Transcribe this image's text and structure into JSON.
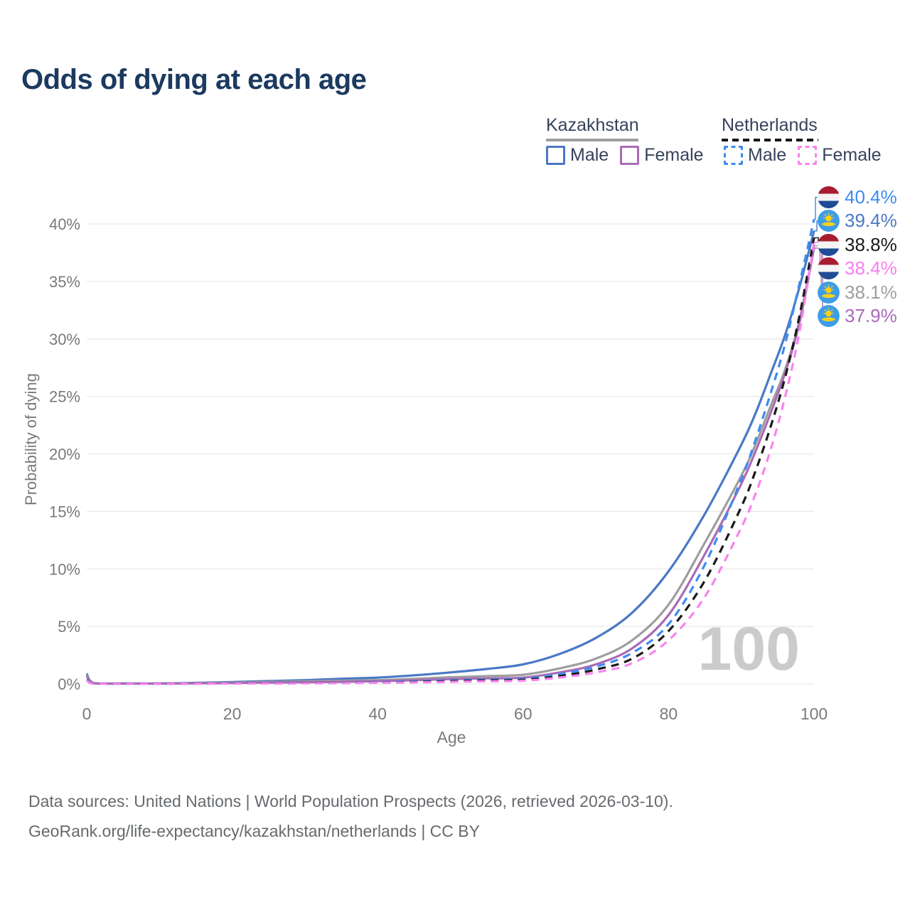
{
  "title": "Odds of dying at each age",
  "legend": {
    "groups": [
      {
        "id": "kazakhstan",
        "label": "Kazakhstan",
        "line_style": "solid",
        "line_color": "#9e9e9e",
        "items": [
          {
            "id": "kz-male",
            "label": "Male",
            "color": "#4a79c5",
            "style": "solid"
          },
          {
            "id": "kz-female",
            "label": "Female",
            "color": "#a96bb5",
            "style": "solid"
          }
        ]
      },
      {
        "id": "netherlands",
        "label": "Netherlands",
        "line_style": "dashed",
        "line_color": "#161616",
        "items": [
          {
            "id": "nl-male",
            "label": "Male",
            "color": "#3d8bf2",
            "style": "dashed"
          },
          {
            "id": "nl-female",
            "label": "Female",
            "color": "#f883f0",
            "style": "dashed"
          }
        ]
      }
    ]
  },
  "axes": {
    "y_label": "Probability of dying",
    "x_label": "Age",
    "y_ticks": [
      {
        "value": 0,
        "label": "0%"
      },
      {
        "value": 5,
        "label": "5%"
      },
      {
        "value": 10,
        "label": "10%"
      },
      {
        "value": 15,
        "label": "15%"
      },
      {
        "value": 20,
        "label": "20%"
      },
      {
        "value": 25,
        "label": "25%"
      },
      {
        "value": 30,
        "label": "30%"
      },
      {
        "value": 35,
        "label": "35%"
      },
      {
        "value": 40,
        "label": "40%"
      }
    ],
    "x_ticks": [
      {
        "value": 0,
        "label": "0"
      },
      {
        "value": 20,
        "label": "20"
      },
      {
        "value": 40,
        "label": "40"
      },
      {
        "value": 60,
        "label": "60"
      },
      {
        "value": 80,
        "label": "80"
      },
      {
        "value": 100,
        "label": "100"
      }
    ]
  },
  "age_marker": "100",
  "end_labels": [
    {
      "series": "nl-male",
      "flag": "netherlands",
      "text": "40.4%",
      "color": "#3d8bf2"
    },
    {
      "series": "kz-male",
      "flag": "kazakhstan",
      "text": "39.4%",
      "color": "#4a79c5"
    },
    {
      "series": "nl-both",
      "flag": "netherlands",
      "text": "38.8%",
      "color": "#1a1a1a"
    },
    {
      "series": "nl-female",
      "flag": "netherlands",
      "text": "38.4%",
      "color": "#f87ef0"
    },
    {
      "series": "kz-both",
      "flag": "kazakhstan",
      "text": "38.1%",
      "color": "#9e9e9e"
    },
    {
      "series": "kz-female",
      "flag": "kazakhstan",
      "text": "37.9%",
      "color": "#a96bb5"
    }
  ],
  "footer": {
    "line1": "Data sources: United Nations | World Population Prospects (2026, retrieved 2026-03-10).",
    "line2": "GeoRank.org/life-expectancy/kazakhstan/netherlands | CC BY"
  },
  "chart_data": {
    "type": "line",
    "title": "Odds of dying at each age",
    "xlabel": "Age",
    "ylabel": "Probability of dying",
    "xlim": [
      0,
      100
    ],
    "ylim_percent": [
      0,
      42
    ],
    "grid": true,
    "legend_position": "top-right",
    "x_ages": [
      0,
      1,
      5,
      10,
      15,
      20,
      25,
      30,
      35,
      40,
      45,
      50,
      55,
      60,
      65,
      70,
      75,
      80,
      85,
      90,
      92,
      94,
      96,
      98,
      100
    ],
    "series": [
      {
        "id": "kz-male",
        "name": "Kazakhstan Male",
        "country": "Kazakhstan",
        "sex": "male",
        "style": "solid",
        "color": "#4a79c5",
        "end_value_percent": 39.4,
        "values_percent": [
          0.9,
          0.07,
          0.04,
          0.04,
          0.09,
          0.17,
          0.25,
          0.33,
          0.45,
          0.55,
          0.75,
          1.0,
          1.3,
          1.7,
          2.6,
          4.0,
          6.2,
          9.8,
          14.8,
          20.8,
          23.6,
          26.9,
          30.3,
          34.5,
          39.4
        ]
      },
      {
        "id": "kz-both",
        "name": "Kazakhstan (both sexes)",
        "country": "Kazakhstan",
        "sex": "both",
        "style": "solid",
        "color": "#9e9e9e",
        "end_value_percent": 38.1,
        "values_percent": [
          0.8,
          0.06,
          0.03,
          0.03,
          0.07,
          0.12,
          0.17,
          0.23,
          0.28,
          0.33,
          0.44,
          0.58,
          0.68,
          0.8,
          1.35,
          2.2,
          3.8,
          6.9,
          12.3,
          18.1,
          20.9,
          24.1,
          27.3,
          31.6,
          38.1
        ]
      },
      {
        "id": "kz-female",
        "name": "Kazakhstan Female",
        "country": "Kazakhstan",
        "sex": "female",
        "style": "solid",
        "color": "#a96bb5",
        "end_value_percent": 37.9,
        "values_percent": [
          0.72,
          0.05,
          0.03,
          0.03,
          0.05,
          0.08,
          0.11,
          0.15,
          0.18,
          0.24,
          0.32,
          0.42,
          0.48,
          0.55,
          1.0,
          1.7,
          3.1,
          6.0,
          11.3,
          17.4,
          20.3,
          23.5,
          27.0,
          31.4,
          37.9
        ]
      },
      {
        "id": "nl-male",
        "name": "Netherlands Male",
        "country": "Netherlands",
        "sex": "male",
        "style": "dashed",
        "color": "#3d8bf2",
        "end_value_percent": 40.4,
        "values_percent": [
          0.38,
          0.03,
          0.02,
          0.02,
          0.03,
          0.05,
          0.06,
          0.08,
          0.11,
          0.15,
          0.22,
          0.3,
          0.37,
          0.45,
          0.85,
          1.5,
          2.7,
          5.2,
          10.4,
          17.8,
          21.3,
          25.2,
          29.5,
          34.8,
          40.4
        ]
      },
      {
        "id": "nl-both",
        "name": "Netherlands (both sexes)",
        "country": "Netherlands",
        "sex": "both",
        "style": "dashed",
        "color": "#1a1a1a",
        "end_value_percent": 38.8,
        "values_percent": [
          0.34,
          0.03,
          0.02,
          0.02,
          0.03,
          0.04,
          0.05,
          0.07,
          0.09,
          0.12,
          0.17,
          0.24,
          0.3,
          0.36,
          0.68,
          1.25,
          2.2,
          4.6,
          9.0,
          15.4,
          18.6,
          22.3,
          26.6,
          32.0,
          38.8
        ]
      },
      {
        "id": "nl-female",
        "name": "Netherlands Female",
        "country": "Netherlands",
        "sex": "female",
        "style": "dashed",
        "color": "#f883f0",
        "end_value_percent": 38.4,
        "values_percent": [
          0.31,
          0.02,
          0.01,
          0.01,
          0.02,
          0.03,
          0.04,
          0.05,
          0.07,
          0.1,
          0.13,
          0.18,
          0.23,
          0.28,
          0.55,
          1.0,
          1.8,
          3.8,
          7.6,
          13.6,
          16.6,
          20.3,
          24.9,
          30.6,
          38.4
        ]
      }
    ]
  }
}
